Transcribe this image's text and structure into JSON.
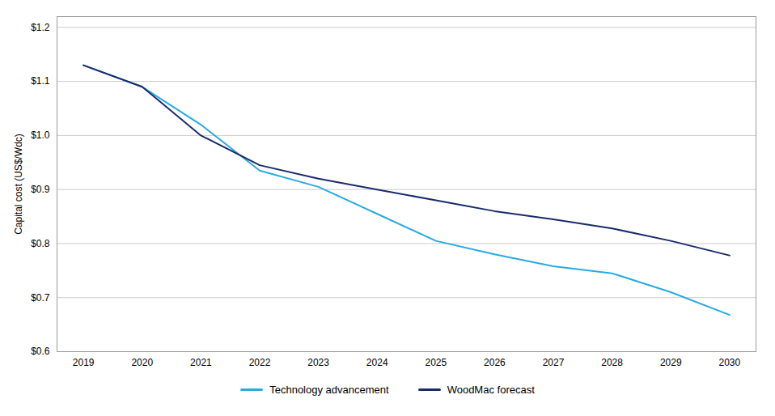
{
  "chart_data": {
    "type": "line",
    "ylabel": "Capital cost (US$/Wdc)",
    "x": [
      2019,
      2020,
      2021,
      2022,
      2023,
      2024,
      2025,
      2026,
      2027,
      2028,
      2029,
      2030
    ],
    "series": [
      {
        "name": "Technology advancement",
        "color": "#29aae1",
        "values": [
          1.13,
          1.09,
          1.02,
          0.935,
          0.905,
          0.855,
          0.805,
          0.78,
          0.758,
          0.745,
          0.71,
          0.668
        ]
      },
      {
        "name": "WoodMac forecast",
        "color": "#1a2b6b",
        "values": [
          1.13,
          1.09,
          1.0,
          0.945,
          0.92,
          0.9,
          0.88,
          0.86,
          0.845,
          0.828,
          0.805,
          0.778
        ]
      }
    ],
    "xlim": [
      2018.55,
      2030.45
    ],
    "xticks": [
      2019,
      2020,
      2021,
      2022,
      2023,
      2024,
      2025,
      2026,
      2027,
      2028,
      2029,
      2030
    ],
    "ylim": [
      0.6,
      1.22
    ],
    "yticks": [
      {
        "value": 0.6,
        "label": "$0.6"
      },
      {
        "value": 0.7,
        "label": "$0.7"
      },
      {
        "value": 0.8,
        "label": "$0.8"
      },
      {
        "value": 0.9,
        "label": "$0.9"
      },
      {
        "value": 1.0,
        "label": "$1.0"
      },
      {
        "value": 1.1,
        "label": "$1.1"
      },
      {
        "value": 1.2,
        "label": "$1.2"
      }
    ],
    "grid": true,
    "legend": "bottom"
  }
}
